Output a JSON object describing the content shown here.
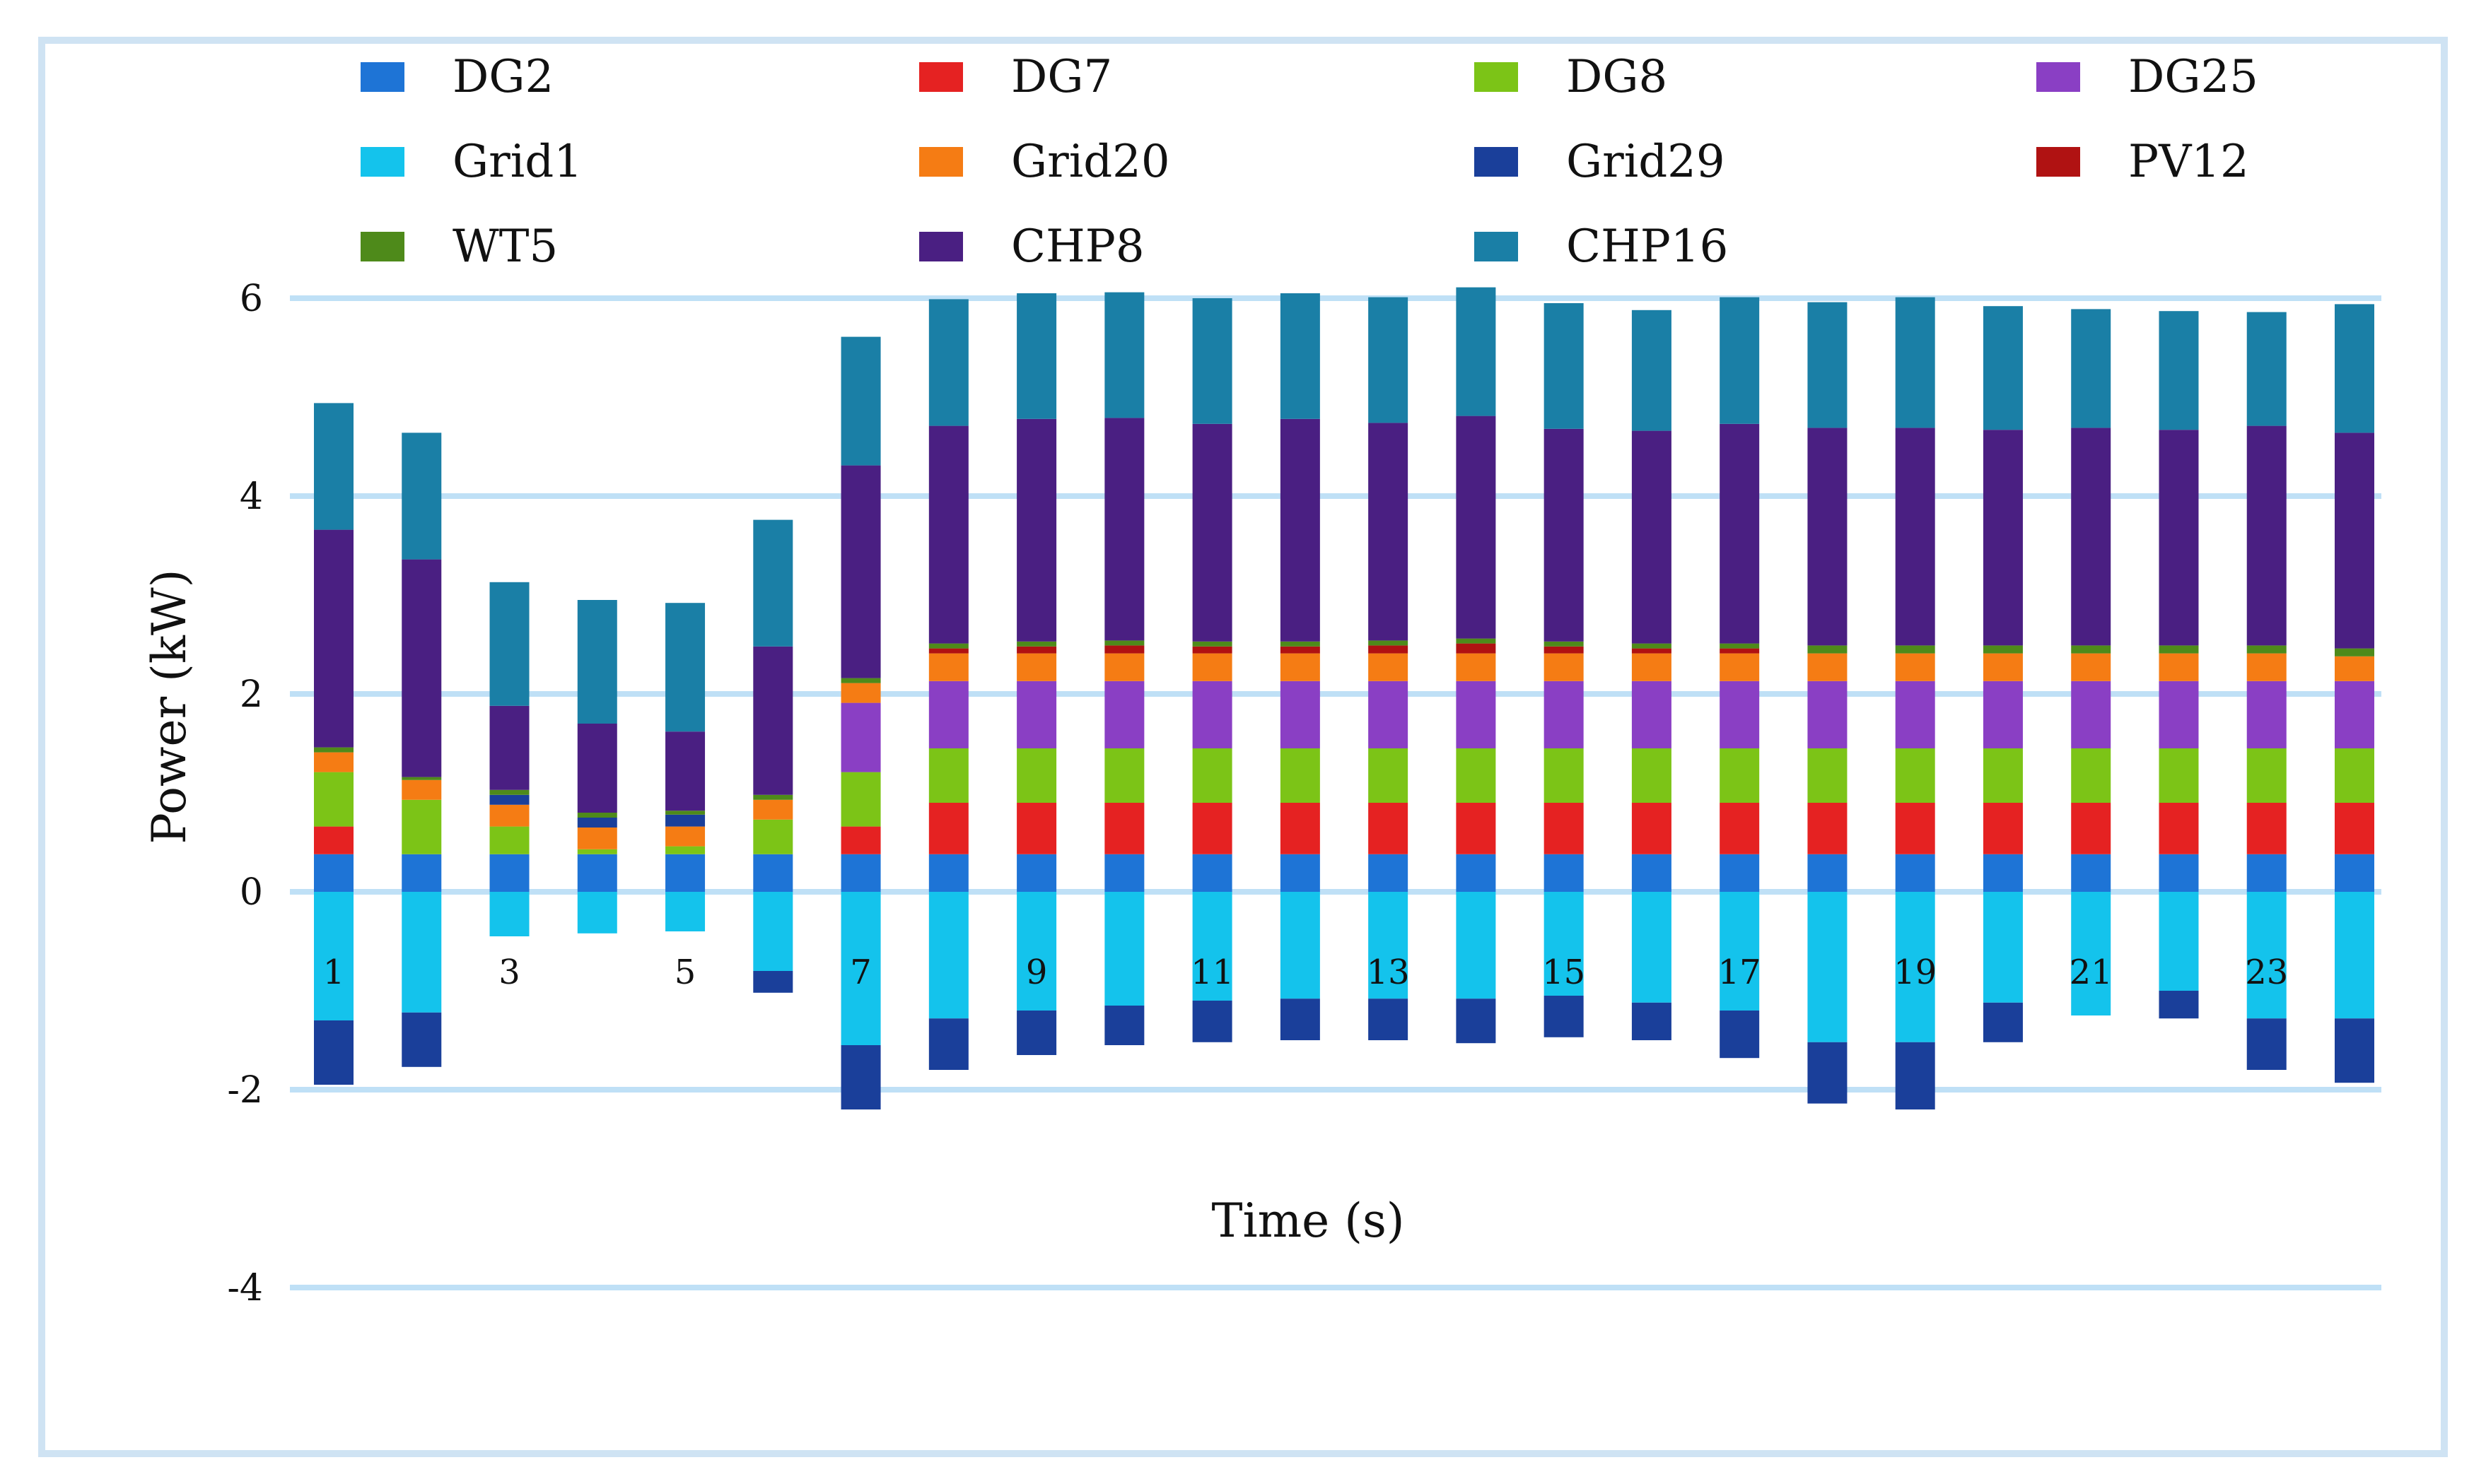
{
  "chart_data": {
    "type": "bar",
    "stacked": true,
    "xlabel": "Time (s)",
    "ylabel": "Power (kW)",
    "ylim": [
      -4,
      6
    ],
    "yticks": [
      6,
      4,
      2,
      0,
      -2,
      -4
    ],
    "grid": true,
    "legend_position": "top",
    "categories": [
      "1",
      "2",
      "3",
      "4",
      "5",
      "6",
      "7",
      "8",
      "9",
      "10",
      "11",
      "12",
      "13",
      "14",
      "15",
      "16",
      "17",
      "18",
      "19",
      "20",
      "21",
      "22",
      "23",
      "24"
    ],
    "category_labels": [
      "1",
      "",
      "3",
      "",
      "5",
      "",
      "7",
      "",
      "9",
      "",
      "11",
      "",
      "13",
      "",
      "15",
      "",
      "17",
      "",
      "19",
      "",
      "21",
      "",
      "23",
      ""
    ],
    "series": [
      {
        "name": "DG2",
        "color": "#1e74d6",
        "values": [
          0.38,
          0.38,
          0.38,
          0.38,
          0.38,
          0.38,
          0.38,
          0.38,
          0.38,
          0.38,
          0.38,
          0.38,
          0.38,
          0.38,
          0.38,
          0.38,
          0.38,
          0.38,
          0.38,
          0.38,
          0.38,
          0.38,
          0.38,
          0.38
        ]
      },
      {
        "name": "DG7",
        "color": "#e52222",
        "values": [
          0.28,
          0,
          0,
          0,
          0,
          0,
          0.28,
          0.52,
          0.52,
          0.52,
          0.52,
          0.52,
          0.52,
          0.52,
          0.52,
          0.52,
          0.52,
          0.52,
          0.52,
          0.52,
          0.52,
          0.52,
          0.52,
          0.52
        ]
      },
      {
        "name": "DG8",
        "color": "#7cc417",
        "values": [
          0.55,
          0.55,
          0.28,
          0.05,
          0.08,
          0.35,
          0.55,
          0.55,
          0.55,
          0.55,
          0.55,
          0.55,
          0.55,
          0.55,
          0.55,
          0.55,
          0.55,
          0.55,
          0.55,
          0.55,
          0.55,
          0.55,
          0.55,
          0.55
        ]
      },
      {
        "name": "DG25",
        "color": "#8a3fc4",
        "values": [
          0,
          0,
          0,
          0,
          0,
          0,
          0.7,
          0.68,
          0.68,
          0.68,
          0.68,
          0.68,
          0.68,
          0.68,
          0.68,
          0.68,
          0.68,
          0.68,
          0.68,
          0.68,
          0.68,
          0.68,
          0.68,
          0.68
        ]
      },
      {
        "name": "Grid1",
        "color": "#14c3ec",
        "values": [
          -1.3,
          -1.22,
          -0.45,
          -0.42,
          -0.4,
          -0.8,
          -1.55,
          -1.28,
          -1.2,
          -1.15,
          -1.1,
          -1.08,
          -1.08,
          -1.08,
          -1.05,
          -1.12,
          -1.2,
          -1.52,
          -1.52,
          -1.12,
          -1.25,
          -1.0,
          -1.28,
          -1.28
        ]
      },
      {
        "name": "Grid20",
        "color": "#f57c14",
        "values": [
          0.2,
          0.2,
          0.22,
          0.22,
          0.2,
          0.2,
          0.2,
          0.28,
          0.28,
          0.28,
          0.28,
          0.28,
          0.28,
          0.28,
          0.28,
          0.28,
          0.28,
          0.28,
          0.28,
          0.28,
          0.28,
          0.28,
          0.28,
          0.25
        ]
      },
      {
        "name": "Grid29",
        "color": "#1a3f9a",
        "values": [
          -0.65,
          -0.55,
          0.1,
          0.1,
          0.12,
          -0.22,
          -0.65,
          -0.52,
          -0.45,
          -0.4,
          -0.42,
          -0.42,
          -0.42,
          -0.45,
          -0.42,
          -0.38,
          -0.48,
          -0.62,
          -0.68,
          -0.4,
          0,
          -0.28,
          -0.52,
          -0.65
        ]
      },
      {
        "name": "PV12",
        "color": "#b01212",
        "values": [
          0,
          0,
          0,
          0,
          0,
          0,
          0,
          0.05,
          0.07,
          0.08,
          0.07,
          0.07,
          0.08,
          0.1,
          0.07,
          0.05,
          0.05,
          0,
          0,
          0,
          0,
          0,
          0,
          0
        ]
      },
      {
        "name": "WT5",
        "color": "#4e8a1a",
        "values": [
          0.05,
          0.03,
          0.05,
          0.05,
          0.04,
          0.05,
          0.05,
          0.05,
          0.05,
          0.05,
          0.05,
          0.05,
          0.05,
          0.05,
          0.05,
          0.05,
          0.05,
          0.08,
          0.08,
          0.08,
          0.08,
          0.08,
          0.08,
          0.08
        ]
      },
      {
        "name": "CHP8",
        "color": "#4a1f82",
        "values": [
          2.2,
          2.2,
          0.85,
          0.9,
          0.8,
          1.5,
          2.15,
          2.2,
          2.25,
          2.25,
          2.2,
          2.25,
          2.2,
          2.25,
          2.15,
          2.15,
          2.22,
          2.2,
          2.2,
          2.18,
          2.2,
          2.18,
          2.22,
          2.18
        ]
      },
      {
        "name": "CHP16",
        "color": "#1a7fa6",
        "values": [
          1.28,
          1.28,
          1.25,
          1.25,
          1.3,
          1.28,
          1.3,
          1.28,
          1.27,
          1.27,
          1.27,
          1.27,
          1.27,
          1.3,
          1.27,
          1.22,
          1.28,
          1.27,
          1.32,
          1.25,
          1.2,
          1.2,
          1.15,
          1.3
        ]
      }
    ]
  }
}
